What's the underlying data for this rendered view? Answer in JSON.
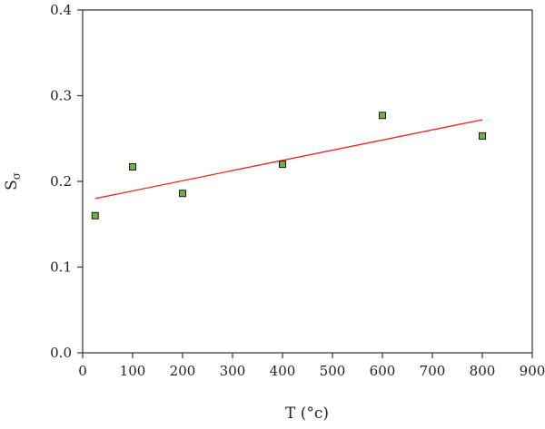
{
  "chart_data": {
    "type": "scatter",
    "title": "",
    "xlabel": "T (°c)",
    "ylabel_main": "S",
    "ylabel_sub": "σ",
    "xlim": [
      0,
      900
    ],
    "ylim": [
      0.0,
      0.4
    ],
    "xticks": [
      0,
      100,
      200,
      300,
      400,
      500,
      600,
      700,
      800,
      900
    ],
    "yticks": [
      "0.0",
      "0.1",
      "0.2",
      "0.3",
      "0.4"
    ],
    "grid": false,
    "points": [
      {
        "x": 25,
        "y": 0.16
      },
      {
        "x": 100,
        "y": 0.217
      },
      {
        "x": 200,
        "y": 0.186
      },
      {
        "x": 400,
        "y": 0.22
      },
      {
        "x": 600,
        "y": 0.277
      },
      {
        "x": 800,
        "y": 0.253
      }
    ],
    "fit_line": {
      "x": [
        25,
        800
      ],
      "y": [
        0.18,
        0.272
      ]
    },
    "colors": {
      "marker_fill": "#6db33f",
      "marker_stroke": "#1a1a1a",
      "fit_line": "#ee2222",
      "axis": "#333333"
    }
  }
}
